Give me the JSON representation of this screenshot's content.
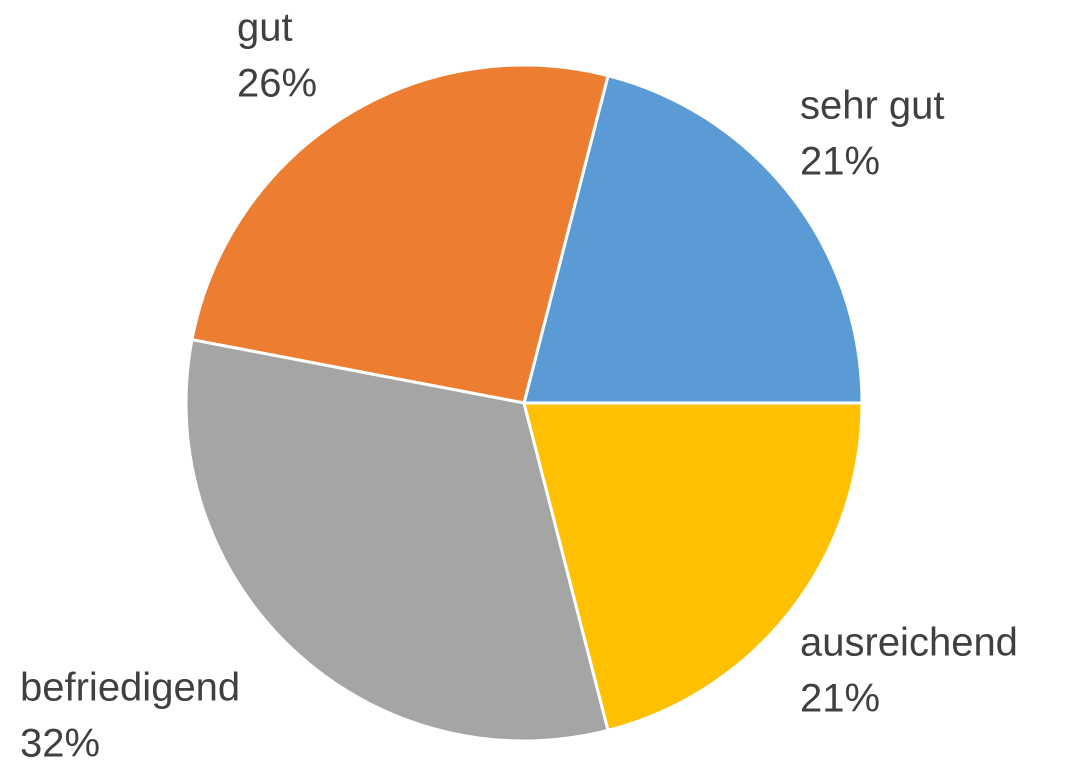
{
  "chart_data": {
    "type": "pie",
    "categories": [
      "sehr gut",
      "gut",
      "befriedigend",
      "ausreichend"
    ],
    "values": [
      21,
      26,
      32,
      21
    ],
    "value_labels": [
      "21%",
      "26%",
      "32%",
      "21%"
    ],
    "colors": [
      "#5b9bd5",
      "#ed7d31",
      "#a5a5a5",
      "#ffc000"
    ]
  }
}
